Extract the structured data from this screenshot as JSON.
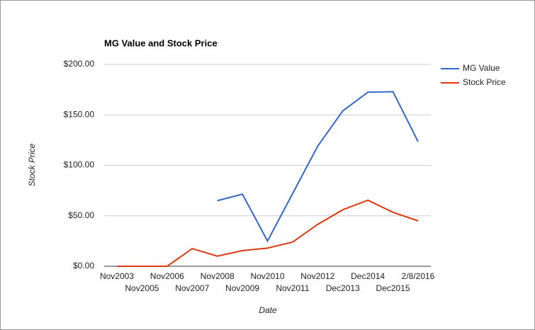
{
  "chart_data": {
    "type": "line",
    "title": "MG Value and Stock Price",
    "x_label": "Date",
    "y_label": "Stock Price",
    "categories": [
      "Nov2003",
      "Nov2005",
      "Nov2006",
      "Nov2007",
      "Nov2008",
      "Nov2009",
      "Nov2010",
      "Nov2011",
      "Nov2012",
      "Dec2013",
      "Dec2014",
      "Dec2015",
      "2/8/2016"
    ],
    "series": [
      {
        "name": "MG Value",
        "color": "#3366cc",
        "values": [
          null,
          null,
          null,
          null,
          65,
          71.5,
          25,
          72,
          119,
          154,
          172.5,
          173,
          123.5
        ]
      },
      {
        "name": "Stock Price",
        "color": "#dc3912",
        "values": [
          0,
          0,
          0,
          17.5,
          10,
          15.5,
          18,
          24,
          41.5,
          56,
          65.5,
          53.5,
          45
        ]
      }
    ],
    "ylim": [
      0,
      200
    ],
    "yticks": [
      {
        "value": 0,
        "label": "$0.00"
      },
      {
        "value": 50,
        "label": "$50.00"
      },
      {
        "value": 100,
        "label": "$100.00"
      },
      {
        "value": 150,
        "label": "$150.00"
      },
      {
        "value": 200,
        "label": "$200.00"
      }
    ],
    "grid": true,
    "legend": "right"
  }
}
